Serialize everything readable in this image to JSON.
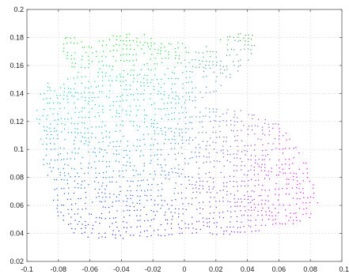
{
  "chart_data": {
    "type": "scatter",
    "title": "",
    "xlabel": "",
    "ylabel": "",
    "xlim": [
      -0.1,
      0.1
    ],
    "ylim": [
      0.02,
      0.2
    ],
    "grid": true,
    "legend": "none",
    "x_ticks": [
      "-0.1",
      "-0.08",
      "-0.06",
      "-0.04",
      "-0.02",
      "0",
      "0.02",
      "0.04",
      "0.06",
      "0.08",
      "0.1"
    ],
    "y_ticks": [
      "0.02",
      "0.04",
      "0.06",
      "0.08",
      "0.1",
      "0.12",
      "0.14",
      "0.16",
      "0.18",
      "0.2"
    ],
    "color_map": [
      "#00e000",
      "#00c8c8",
      "#2020c8",
      "#e000e0"
    ],
    "marker_size": "tiny dots",
    "shape_outline": [
      [
        -0.078,
        0.18
      ],
      [
        -0.07,
        0.181
      ],
      [
        -0.06,
        0.175
      ],
      [
        -0.045,
        0.182
      ],
      [
        -0.03,
        0.185
      ],
      [
        -0.018,
        0.178
      ],
      [
        0.0,
        0.176
      ],
      [
        0.01,
        0.172
      ],
      [
        0.03,
        0.182
      ],
      [
        0.042,
        0.186
      ],
      [
        0.046,
        0.175
      ],
      [
        0.04,
        0.162
      ],
      [
        0.03,
        0.15
      ],
      [
        0.02,
        0.14
      ],
      [
        0.01,
        0.13
      ],
      [
        0.04,
        0.128
      ],
      [
        0.06,
        0.118
      ],
      [
        0.07,
        0.105
      ],
      [
        0.078,
        0.092
      ],
      [
        0.082,
        0.078
      ],
      [
        0.085,
        0.062
      ],
      [
        0.08,
        0.05
      ],
      [
        0.06,
        0.044
      ],
      [
        0.04,
        0.04
      ],
      [
        0.0,
        0.037
      ],
      [
        -0.04,
        0.036
      ],
      [
        -0.066,
        0.037
      ],
      [
        -0.075,
        0.042
      ],
      [
        -0.08,
        0.052
      ],
      [
        -0.085,
        0.07
      ],
      [
        -0.09,
        0.088
      ],
      [
        -0.093,
        0.11
      ],
      [
        -0.094,
        0.125
      ],
      [
        -0.092,
        0.14
      ],
      [
        -0.088,
        0.15
      ],
      [
        -0.082,
        0.148
      ],
      [
        -0.075,
        0.15
      ],
      [
        -0.07,
        0.156
      ],
      [
        -0.077,
        0.165
      ]
    ]
  }
}
